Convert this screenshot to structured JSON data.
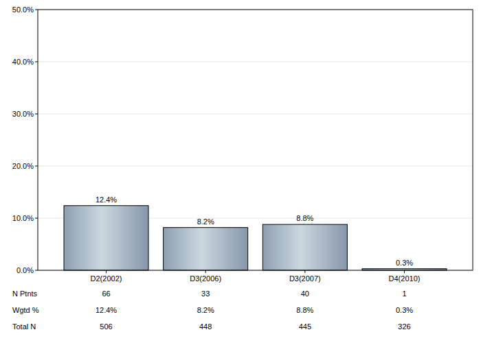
{
  "chart_data": {
    "type": "bar",
    "categories": [
      "D2(2002)",
      "D3(2006)",
      "D3(2007)",
      "D4(2010)"
    ],
    "values": [
      12.4,
      8.2,
      8.8,
      0.3
    ],
    "value_labels": [
      "12.4%",
      "8.2%",
      "8.8%",
      "0.3%"
    ],
    "data_labels": true,
    "color": "#b4c4cf",
    "ylim": [
      0,
      50
    ],
    "yticks": [
      {
        "value": 0,
        "label": "0.0%"
      },
      {
        "value": 10,
        "label": "10.0%"
      },
      {
        "value": 20,
        "label": "20.0%"
      },
      {
        "value": 30,
        "label": "30.0%"
      },
      {
        "value": 40,
        "label": "40.0%"
      },
      {
        "value": 50,
        "label": "50.0%"
      }
    ],
    "grid": true,
    "table": {
      "rows": [
        {
          "label": "N Ptnts",
          "values": [
            "66",
            "33",
            "40",
            "1"
          ]
        },
        {
          "label": "Wgtd %",
          "values": [
            "12.4%",
            "8.2%",
            "8.8%",
            "0.3%"
          ]
        },
        {
          "label": "Total N",
          "values": [
            "506",
            "448",
            "445",
            "326"
          ]
        }
      ]
    }
  }
}
